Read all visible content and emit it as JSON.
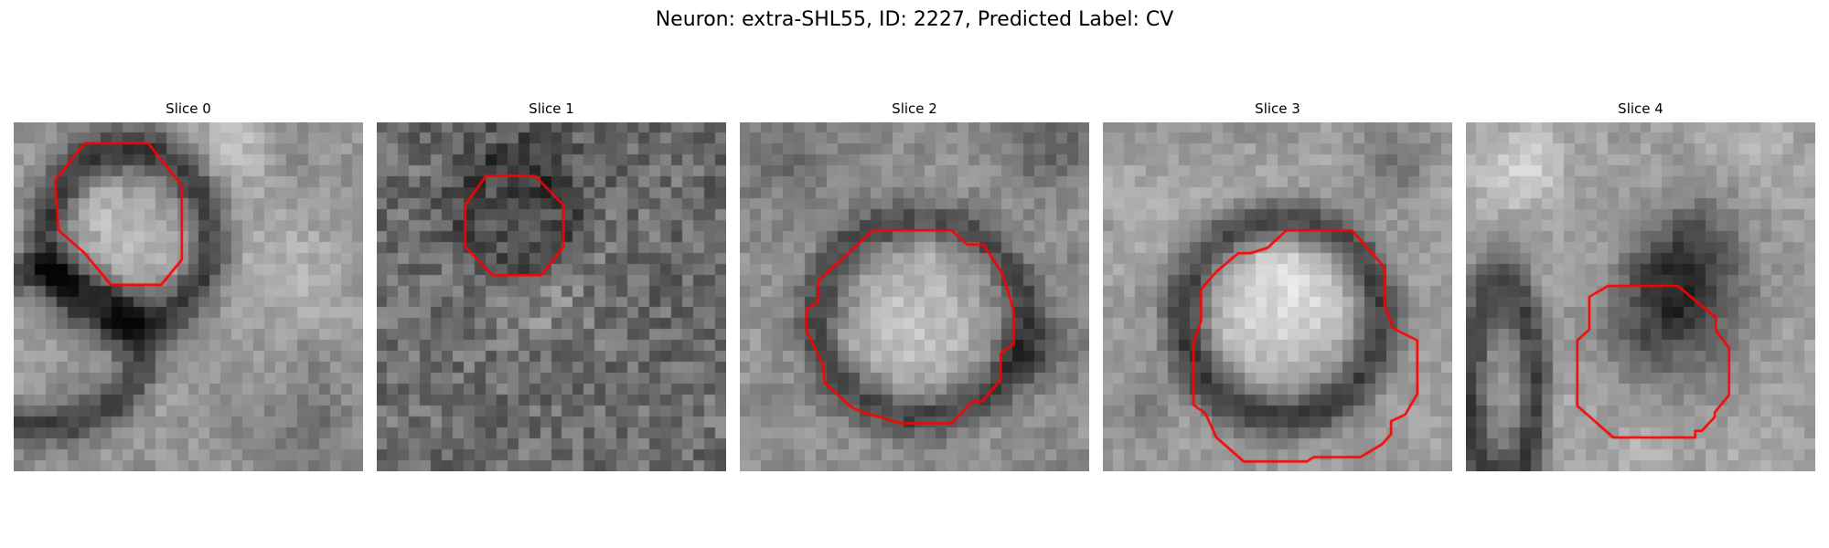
{
  "figure": {
    "title": "Neuron: extra-SHL55, ID: 2227, Predicted Label: CV"
  },
  "colors": {
    "outline": "#ff0000",
    "background": "#ffffff",
    "colormap": "gray"
  },
  "slices": [
    {
      "title": "Slice 0"
    },
    {
      "title": "Slice 1"
    },
    {
      "title": "Slice 2"
    },
    {
      "title": "Slice 3"
    },
    {
      "title": "Slice 4"
    }
  ]
}
